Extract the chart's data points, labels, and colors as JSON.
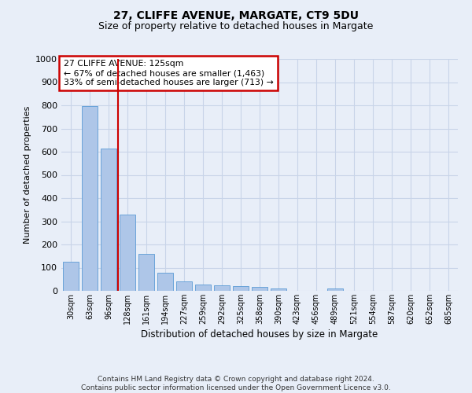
{
  "title1": "27, CLIFFE AVENUE, MARGATE, CT9 5DU",
  "title2": "Size of property relative to detached houses in Margate",
  "xlabel": "Distribution of detached houses by size in Margate",
  "ylabel": "Number of detached properties",
  "categories": [
    "30sqm",
    "63sqm",
    "96sqm",
    "128sqm",
    "161sqm",
    "194sqm",
    "227sqm",
    "259sqm",
    "292sqm",
    "325sqm",
    "358sqm",
    "390sqm",
    "423sqm",
    "456sqm",
    "489sqm",
    "521sqm",
    "554sqm",
    "587sqm",
    "620sqm",
    "652sqm",
    "685sqm"
  ],
  "values": [
    125,
    795,
    615,
    328,
    160,
    78,
    40,
    27,
    24,
    22,
    16,
    10,
    0,
    0,
    10,
    0,
    0,
    0,
    0,
    0,
    0
  ],
  "bar_color": "#aec6e8",
  "bar_edge_color": "#5b9bd5",
  "grid_color": "#c8d4e8",
  "annotation_box_text": "27 CLIFFE AVENUE: 125sqm\n← 67% of detached houses are smaller (1,463)\n33% of semi-detached houses are larger (713) →",
  "annotation_box_color": "#ffffff",
  "annotation_box_edge_color": "#cc0000",
  "vline_color": "#cc0000",
  "ylim": [
    0,
    1000
  ],
  "yticks": [
    0,
    100,
    200,
    300,
    400,
    500,
    600,
    700,
    800,
    900,
    1000
  ],
  "footer_text": "Contains HM Land Registry data © Crown copyright and database right 2024.\nContains public sector information licensed under the Open Government Licence v3.0.",
  "background_color": "#e8eef8"
}
